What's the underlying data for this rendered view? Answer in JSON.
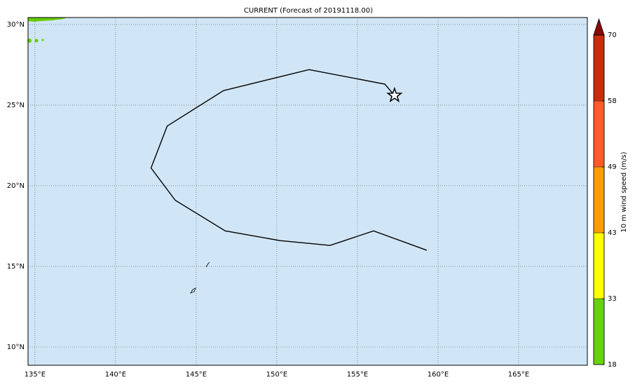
{
  "title": "CURRENT (Forecast of 20191118.00)",
  "map": {
    "xlim": [
      134.57,
      169.26
    ],
    "ylim": [
      8.87,
      30.43
    ],
    "xticks": [
      {
        "value": 135,
        "label": "135°E"
      },
      {
        "value": 140,
        "label": "140°E"
      },
      {
        "value": 145,
        "label": "145°E"
      },
      {
        "value": 150,
        "label": "150°E"
      },
      {
        "value": 155,
        "label": "155°E"
      },
      {
        "value": 160,
        "label": "160°E"
      },
      {
        "value": 165,
        "label": "165°E"
      }
    ],
    "yticks": [
      {
        "value": 10,
        "label": "10°N"
      },
      {
        "value": 15,
        "label": "15°N"
      },
      {
        "value": 20,
        "label": "20°N"
      },
      {
        "value": 25,
        "label": "25°N"
      },
      {
        "value": 30,
        "label": "30°N"
      }
    ],
    "grid": true,
    "track": {
      "color": "#000000",
      "lon": [
        159.3,
        156.0,
        153.3,
        150.2,
        146.8,
        143.7,
        142.2,
        143.2,
        146.7,
        152.0,
        156.7,
        157.3
      ],
      "lat": [
        16.0,
        17.2,
        16.3,
        16.6,
        17.2,
        19.1,
        21.1,
        23.7,
        25.9,
        27.2,
        26.3,
        25.6
      ]
    },
    "current": {
      "lon": 157.3,
      "lat": 25.6
    }
  },
  "colorbar": {
    "label": "10 m wind speed (m/s)",
    "levels": [
      18,
      33,
      43,
      49,
      58,
      70
    ],
    "colors": [
      "#66d40c",
      "#ffff00",
      "#ff9c00",
      "#ff5a28",
      "#cc2a0c"
    ],
    "extend_color": "#8a0a0a"
  }
}
